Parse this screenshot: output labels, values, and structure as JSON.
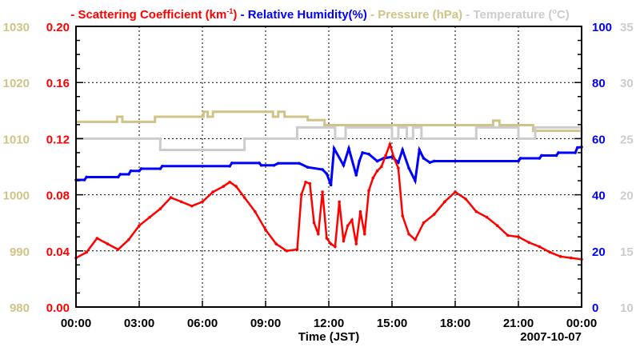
{
  "chart_data": {
    "type": "line",
    "legend": [
      {
        "label": "Scattering Coefficient (km",
        "sup": "-1",
        "tail": ")",
        "color": "#ff0000"
      },
      {
        "label": "Relative Humidity(%)",
        "color": "#0000ff"
      },
      {
        "label": "Pressure (hPa)",
        "color": "#cfc487"
      },
      {
        "label": "Temperature (",
        "sup": "o",
        "tail": "C)",
        "color": "#cccccc"
      }
    ],
    "legend_placement": "top",
    "xlabel": "Time (JST)",
    "date_label": "2007-10-07",
    "xlim": [
      0,
      24
    ],
    "x_ticks": [
      0,
      3,
      6,
      9,
      12,
      15,
      18,
      21,
      24
    ],
    "x_tick_labels": [
      "00:00",
      "03:00",
      "06:00",
      "09:00",
      "12:00",
      "15:00",
      "18:00",
      "21:00",
      "00:00"
    ],
    "grid": true,
    "axes": {
      "pressure": {
        "ylim": [
          980,
          1030
        ],
        "ticks": [
          "980",
          "990",
          "1000",
          "1010",
          "1020",
          "1030"
        ],
        "side": "left-outer",
        "color": "#cfc487"
      },
      "scattering": {
        "ylim": [
          0,
          0.2
        ],
        "ticks": [
          "0.00",
          "0.04",
          "0.08",
          "0.12",
          "0.16",
          "0.20"
        ],
        "side": "left",
        "color": "#ff0000"
      },
      "humidity": {
        "ylim": [
          0,
          100
        ],
        "ticks": [
          "0",
          "20",
          "40",
          "60",
          "80",
          "100"
        ],
        "side": "right",
        "color": "#0000ff"
      },
      "temperature": {
        "ylim": [
          10,
          35
        ],
        "ticks": [
          "10",
          "15",
          "20",
          "25",
          "30",
          "35"
        ],
        "side": "right-outer",
        "color": "#cccccc"
      }
    },
    "series": [
      {
        "name": "Pressure",
        "axis": "pressure",
        "color": "#cfc487",
        "step": true,
        "x": [
          0,
          1.95,
          2.2,
          3.75,
          6.05,
          6.25,
          6.5,
          9.35,
          9.6,
          9.9,
          11.0,
          11.8,
          19.8,
          20.1,
          21.7,
          24
        ],
        "y": [
          1013,
          1013.9,
          1013,
          1013.9,
          1014.8,
          1013.9,
          1014.8,
          1013.9,
          1014.8,
          1013.9,
          1013.3,
          1012.4,
          1013.2,
          1012.4,
          1011.4,
          1010.4
        ]
      },
      {
        "name": "Temperature",
        "axis": "temperature",
        "color": "#cccccc",
        "step": true,
        "x": [
          0,
          4.0,
          8.0,
          10.5,
          12.3,
          12.8,
          15.0,
          15.3,
          15.7,
          16.0,
          16.4,
          19.0,
          21.0,
          21.8,
          24
        ],
        "y": [
          25,
          24,
          25,
          26,
          25,
          26,
          25,
          26,
          25,
          26,
          25,
          26,
          25,
          26,
          25
        ]
      },
      {
        "name": "Relative Humidity",
        "axis": "humidity",
        "color": "#0000ff",
        "step": false,
        "x": [
          0,
          0.4,
          0.5,
          2.0,
          2.1,
          2.5,
          2.6,
          3.0,
          3.1,
          4.0,
          4.1,
          7.3,
          7.4,
          8.7,
          8.8,
          9.4,
          9.6,
          10.6,
          11.0,
          11.7,
          11.9,
          12.1,
          12.25,
          12.7,
          12.95,
          13.3,
          13.45,
          13.6,
          13.9,
          14.3,
          14.6,
          15.0,
          15.3,
          15.5,
          15.8,
          16.1,
          16.3,
          16.5,
          16.8,
          17.0,
          21.0,
          21.1,
          22.0,
          22.1,
          22.8,
          22.9,
          23.7,
          23.8,
          24
        ],
        "y": [
          45.3,
          45.3,
          46.3,
          46.3,
          47.3,
          47.3,
          48.5,
          48.5,
          49.3,
          49.3,
          50.2,
          50.2,
          51.3,
          51.3,
          50.5,
          50.5,
          51.2,
          51.2,
          49.8,
          49.0,
          47.5,
          43.5,
          56.5,
          50.5,
          56.5,
          47.0,
          52.0,
          55.0,
          54.5,
          52.0,
          53.0,
          53.5,
          51.5,
          56.0,
          49.5,
          45.0,
          56.0,
          53.0,
          51.5,
          52.0,
          52.0,
          53.0,
          53.0,
          54.0,
          54.0,
          55.0,
          55.0,
          56.8,
          57.0
        ]
      },
      {
        "name": "Scattering Coefficient",
        "axis": "scattering",
        "color": "#ff0000",
        "step": false,
        "x": [
          0,
          0.5,
          1.0,
          1.5,
          2.0,
          2.5,
          3.0,
          3.5,
          4.0,
          4.5,
          5.0,
          5.5,
          6.0,
          6.5,
          7.0,
          7.3,
          7.6,
          8.0,
          8.5,
          9.0,
          9.5,
          10.0,
          10.5,
          10.7,
          10.9,
          11.1,
          11.3,
          11.5,
          11.7,
          11.9,
          12.1,
          12.3,
          12.5,
          12.7,
          12.9,
          13.1,
          13.3,
          13.5,
          13.7,
          13.9,
          14.1,
          14.3,
          14.5,
          14.7,
          14.9,
          15.1,
          15.3,
          15.5,
          15.8,
          16.1,
          16.5,
          17.0,
          17.5,
          18.0,
          18.5,
          19.0,
          19.5,
          20.0,
          20.5,
          21.0,
          21.5,
          22.0,
          22.5,
          23.0,
          23.5,
          24
        ],
        "y": [
          0.035,
          0.039,
          0.049,
          0.045,
          0.041,
          0.048,
          0.058,
          0.064,
          0.07,
          0.078,
          0.075,
          0.072,
          0.075,
          0.082,
          0.086,
          0.089,
          0.086,
          0.078,
          0.068,
          0.055,
          0.045,
          0.04,
          0.041,
          0.08,
          0.089,
          0.088,
          0.06,
          0.052,
          0.082,
          0.049,
          0.045,
          0.043,
          0.075,
          0.047,
          0.058,
          0.062,
          0.045,
          0.068,
          0.052,
          0.083,
          0.092,
          0.097,
          0.1,
          0.108,
          0.116,
          0.106,
          0.099,
          0.065,
          0.052,
          0.048,
          0.06,
          0.066,
          0.075,
          0.082,
          0.077,
          0.068,
          0.064,
          0.058,
          0.051,
          0.05,
          0.046,
          0.043,
          0.039,
          0.036,
          0.035,
          0.034
        ]
      }
    ]
  }
}
